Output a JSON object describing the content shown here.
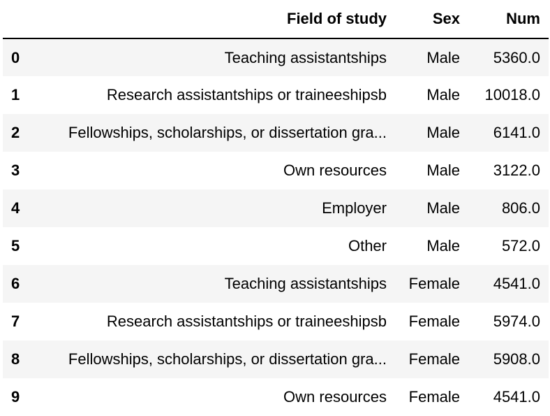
{
  "table": {
    "columns": {
      "index": "",
      "field": "Field of study",
      "sex": "Sex",
      "num": "Num"
    },
    "rows": [
      {
        "index": "0",
        "field": "Teaching assistantships",
        "sex": "Male",
        "num": "5360.0"
      },
      {
        "index": "1",
        "field": "Research assistantships or traineeshipsb",
        "sex": "Male",
        "num": "10018.0"
      },
      {
        "index": "2",
        "field": "Fellowships, scholarships, or dissertation gra...",
        "sex": "Male",
        "num": "6141.0"
      },
      {
        "index": "3",
        "field": "Own resources",
        "sex": "Male",
        "num": "3122.0"
      },
      {
        "index": "4",
        "field": "Employer",
        "sex": "Male",
        "num": "806.0"
      },
      {
        "index": "5",
        "field": "Other",
        "sex": "Male",
        "num": "572.0"
      },
      {
        "index": "6",
        "field": "Teaching assistantships",
        "sex": "Female",
        "num": "4541.0"
      },
      {
        "index": "7",
        "field": "Research assistantships or traineeshipsb",
        "sex": "Female",
        "num": "5974.0"
      },
      {
        "index": "8",
        "field": "Fellowships, scholarships, or dissertation gra...",
        "sex": "Female",
        "num": "5908.0"
      },
      {
        "index": "9",
        "field": "Own resources",
        "sex": "Female",
        "num": "4541.0"
      }
    ]
  }
}
